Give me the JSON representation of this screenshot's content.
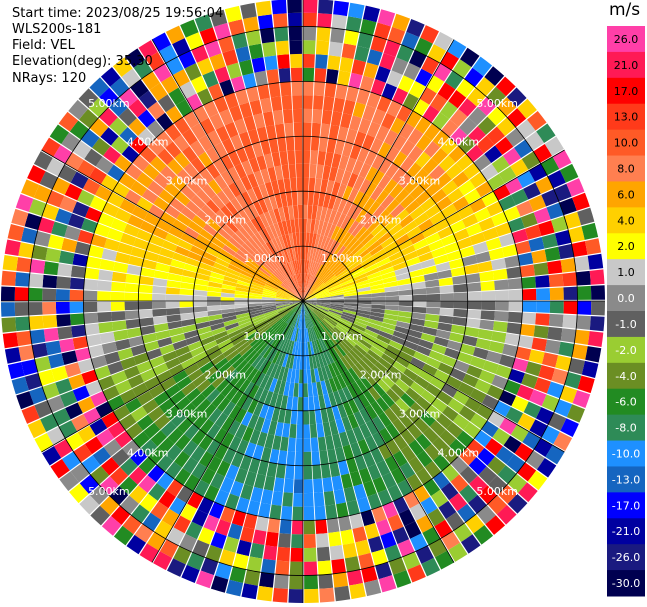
{
  "header": {
    "start_time": "Start time: 2023/08/25 19:56:04",
    "site": "WLS200s-181",
    "field": "Field: VEL",
    "elevation": "Elevation(deg): 35.30",
    "nrays": "NRays: 120"
  },
  "range_ring_labels": [
    "1.00km",
    "2.00km",
    "3.00km",
    "4.00km",
    "5.00km"
  ],
  "colorbar": {
    "unit": "m/s",
    "ticks": [
      "26.0",
      "21.0",
      "17.0",
      "13.0",
      "10.0",
      "8.0",
      "6.0",
      "4.0",
      "2.0",
      "1.0",
      "0.0",
      "-1.0",
      "-2.0",
      "-4.0",
      "-6.0",
      "-8.0",
      "-10.0",
      "-13.0",
      "-17.0",
      "-21.0",
      "-26.0",
      "-30.0"
    ],
    "colors": [
      "#ff3fa8",
      "#ff1a55",
      "#ff0000",
      "#ff3a1a",
      "#ff5a26",
      "#ff7f50",
      "#ffa500",
      "#ffd000",
      "#ffff00",
      "#c8c8c8",
      "#8a8a8a",
      "#606060",
      "#9acd32",
      "#6b8e23",
      "#228b22",
      "#2e8b57",
      "#1e90ff",
      "#1565c0",
      "#0000ff",
      "#0000a0",
      "#1a1a80",
      "#000050"
    ]
  },
  "chart_data": {
    "type": "heatmap",
    "projection": "polar PPI",
    "field": "VEL",
    "unit": "m/s",
    "rays": 120,
    "max_range_km": 5.5,
    "range_rings_km": [
      1,
      2,
      3,
      4,
      5
    ],
    "azimuth_spokes_deg": [
      0,
      30,
      60,
      90,
      120,
      150,
      180,
      210,
      240,
      270,
      300,
      330
    ],
    "velocity_pattern": [
      {
        "sector": "north",
        "velocity": 10
      },
      {
        "sector": "northeast",
        "velocity": 6
      },
      {
        "sector": "east",
        "velocity": 0
      },
      {
        "sector": "southeast",
        "velocity": -4
      },
      {
        "sector": "south",
        "velocity": -10
      },
      {
        "sector": "southwest",
        "velocity": -6
      },
      {
        "sector": "west",
        "velocity": 1
      },
      {
        "sector": "northwest",
        "velocity": 8
      }
    ]
  }
}
